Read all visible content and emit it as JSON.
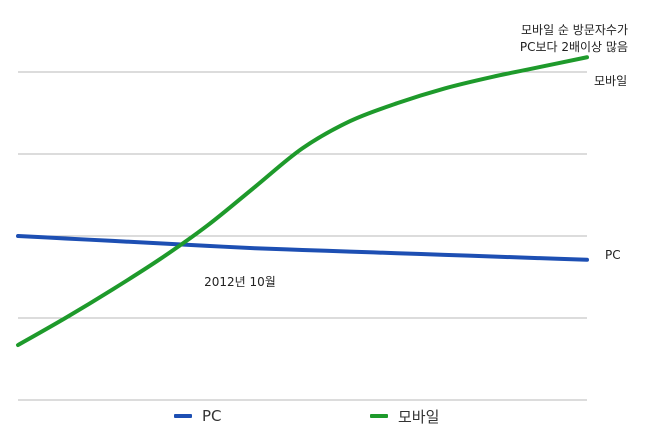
{
  "annotation": {
    "line1": "모바일 순 방문자수가",
    "line2": "PC보다 2배이상 많음"
  },
  "crossover_label": "2012년 10월",
  "colors": {
    "pc": "#1d4fb3",
    "mobile": "#1e9a2b",
    "grid": "#b9b9b9"
  },
  "chart_data": {
    "type": "line",
    "title": "",
    "xlabel": "",
    "ylabel": "",
    "grid": true,
    "legend_placement": "bottom",
    "x": [
      0,
      1,
      2,
      3,
      4,
      5,
      6,
      7,
      8,
      9,
      10,
      11,
      12
    ],
    "ylim": [
      0,
      4
    ],
    "series": [
      {
        "name": "PC",
        "color": "#1d4fb3",
        "values": [
          2.0,
          1.97,
          1.94,
          1.91,
          1.88,
          1.85,
          1.83,
          1.81,
          1.79,
          1.77,
          1.75,
          1.73,
          1.71
        ]
      },
      {
        "name": "모바일",
        "color": "#1e9a2b",
        "values": [
          0.67,
          1.0,
          1.35,
          1.72,
          2.13,
          2.6,
          3.07,
          3.4,
          3.62,
          3.8,
          3.94,
          4.06,
          4.18
        ]
      }
    ],
    "end_labels": [
      "PC",
      "모바일"
    ],
    "annotations": [
      {
        "text": "2012년 10월",
        "x": 4.5
      },
      {
        "text": "모바일 순 방문자수가 PC보다 2배이상 많음",
        "x": 12
      }
    ]
  }
}
